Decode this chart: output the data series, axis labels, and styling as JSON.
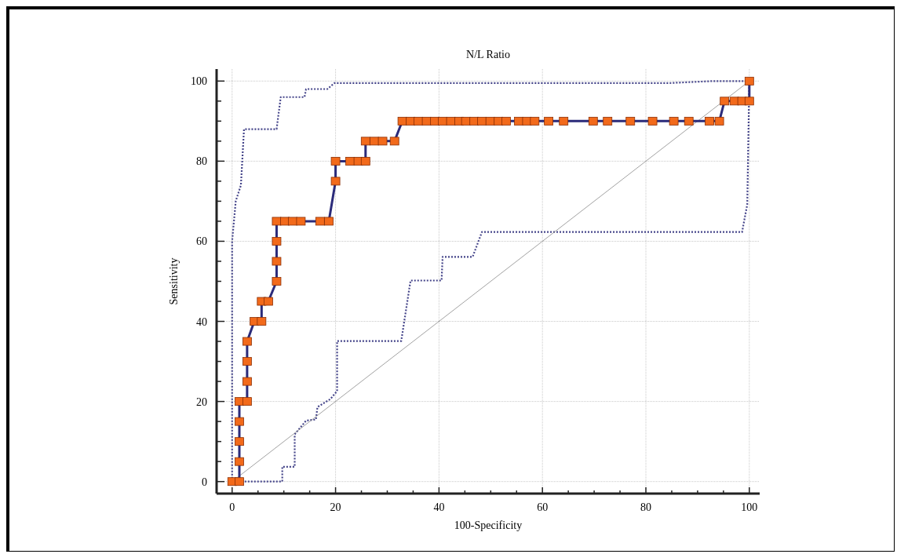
{
  "chart_data": {
    "type": "line",
    "title": "N/L Ratio",
    "xlabel": "100-Specificity",
    "ylabel": "Sensitivity",
    "xlim": [
      -3,
      102
    ],
    "ylim": [
      -3,
      103
    ],
    "xticks": [
      0,
      {
        "value": 5,
        "label": null
      },
      {
        "value": 10,
        "label": null
      },
      {
        "value": 15,
        "label": null
      },
      20,
      {
        "value": 25,
        "label": null
      },
      {
        "value": 30,
        "label": null
      },
      {
        "value": 35,
        "label": null
      },
      40,
      {
        "value": 45,
        "label": null
      },
      {
        "value": 50,
        "label": null
      },
      {
        "value": 55,
        "label": null
      },
      60,
      {
        "value": 65,
        "label": null
      },
      {
        "value": 70,
        "label": null
      },
      {
        "value": 75,
        "label": null
      },
      80,
      {
        "value": 85,
        "label": null
      },
      {
        "value": 90,
        "label": null
      },
      {
        "value": 95,
        "label": null
      },
      100
    ],
    "yticks": [
      0,
      {
        "value": 5,
        "label": null
      },
      {
        "value": 10,
        "label": null
      },
      {
        "value": 15,
        "label": null
      },
      20,
      {
        "value": 25,
        "label": null
      },
      {
        "value": 30,
        "label": null
      },
      {
        "value": 35,
        "label": null
      },
      40,
      {
        "value": 45,
        "label": null
      },
      {
        "value": 50,
        "label": null
      },
      {
        "value": 55,
        "label": null
      },
      60,
      {
        "value": 65,
        "label": null
      },
      {
        "value": 70,
        "label": null
      },
      {
        "value": 75,
        "label": null
      },
      80,
      {
        "value": 85,
        "label": null
      },
      {
        "value": 90,
        "label": null
      },
      {
        "value": 95,
        "label": null
      },
      100
    ],
    "grid": true,
    "series": [
      {
        "color": "#2b2b7a",
        "marker": "square",
        "line_style": "solid",
        "x": [
          0,
          1.4,
          1.4,
          1.4,
          1.4,
          1.4,
          2.9,
          2.9,
          2.9,
          2.9,
          4.3,
          5.7,
          5.7,
          7.0,
          8.6,
          8.6,
          8.6,
          8.6,
          10.2,
          11.7,
          13.3,
          17.0,
          18.7,
          20,
          20,
          22.8,
          24.4,
          25.8,
          25.8,
          27.5,
          29.1,
          31.4,
          32.9,
          34.5,
          36.0,
          37.6,
          39.2,
          40.7,
          42.3,
          43.9,
          45.2,
          46.8,
          48.3,
          49.9,
          51.5,
          53.0,
          55.4,
          57.0,
          58.5,
          61.2,
          64.1,
          69.8,
          72.6,
          77.0,
          81.3,
          85.4,
          88.3,
          92.3,
          94.2,
          95.2,
          97.1,
          98.6,
          100,
          100
        ],
        "values": [
          0,
          0,
          5,
          10,
          15,
          20,
          20,
          25,
          30,
          35,
          40,
          40,
          45,
          45,
          50,
          55,
          60,
          65,
          65,
          65,
          65,
          65,
          65,
          75,
          80,
          80,
          80,
          80,
          85,
          85,
          85,
          85,
          90,
          90,
          90,
          90,
          90,
          90,
          90,
          90,
          90,
          90,
          90,
          90,
          90,
          90,
          90,
          90,
          90,
          90,
          90,
          90,
          90,
          90,
          90,
          90,
          90,
          90,
          90,
          95,
          95,
          95,
          95,
          100
        ]
      },
      {
        "color": "#8a8a8a",
        "marker": "none",
        "line_style": "solid",
        "x": [
          0,
          100
        ],
        "values": [
          0,
          100
        ]
      },
      {
        "color": "#45458a",
        "marker": "none",
        "line_style": "dotted",
        "x": [
          0,
          0,
          0.7,
          1.7,
          2.3,
          8.6,
          9.4,
          14.0,
          14.3,
          18.4,
          19.8,
          84.5,
          92.9,
          100
        ],
        "values": [
          0,
          60,
          70,
          74,
          88,
          88,
          96,
          96,
          98,
          98,
          99.5,
          99.5,
          100,
          100
        ]
      },
      {
        "color": "#45458a",
        "marker": "none",
        "line_style": "dotted",
        "x": [
          0,
          9.7,
          9.7,
          12.1,
          12.1,
          14.3,
          16.2,
          16.5,
          19.0,
          20.3,
          20.3,
          32.7,
          34.5,
          40.5,
          40.7,
          46.5,
          48.3,
          98.6,
          99.6,
          100
        ],
        "values": [
          0,
          0,
          3.7,
          3.7,
          11.8,
          15.2,
          15.5,
          18.6,
          20.6,
          22.6,
          35.1,
          35.1,
          50.2,
          50.2,
          56.1,
          56.1,
          62.3,
          62.3,
          69.2,
          100
        ]
      }
    ]
  }
}
